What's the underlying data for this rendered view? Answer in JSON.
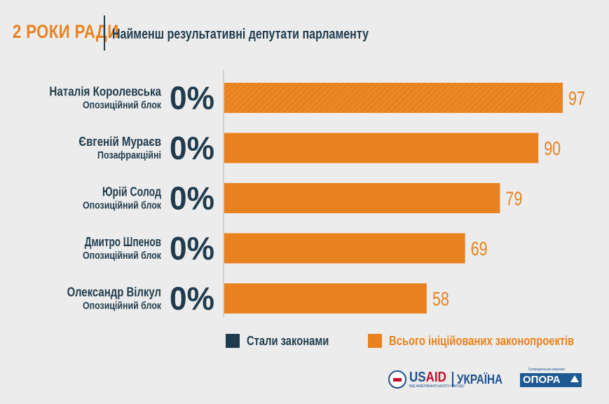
{
  "header": {
    "kicker": "2 РОКИ РАДИ",
    "title": "Найменш результативні депутати парламенту"
  },
  "chart_data": {
    "type": "bar",
    "orientation": "horizontal",
    "title": "Найменш результативні депутати парламенту",
    "categories": [
      {
        "name": "Наталія Королевська",
        "faction": "Опозиційний блок"
      },
      {
        "name": "Євгеній Мураєв",
        "faction": "Позафракційні"
      },
      {
        "name": "Юрій Солод",
        "faction": "Опозиційний блок"
      },
      {
        "name": "Дмитро Шпенов",
        "faction": "Опозиційний блок"
      },
      {
        "name": "Олександр Вілкул",
        "faction": "Опозиційний блок"
      }
    ],
    "series": [
      {
        "name": "Стали законами",
        "color": "#1f3b4d",
        "values": [
          0,
          0,
          0,
          0,
          0
        ]
      },
      {
        "name": "Всього ініційованих законопроектів",
        "color": "#e8821e",
        "values": [
          97,
          90,
          79,
          69,
          58
        ]
      }
    ],
    "percent_labels": [
      "0%",
      "0%",
      "0%",
      "0%",
      "0%"
    ],
    "value_labels": [
      "97",
      "90",
      "79",
      "69",
      "58"
    ],
    "xlim": [
      0,
      100
    ],
    "grid": false,
    "legend": "bottom"
  },
  "legend": {
    "items": [
      {
        "label": "Стали законами",
        "color": "#1f3b4d"
      },
      {
        "label": "Всього ініційованих законопроектів",
        "color": "#e8821e"
      }
    ]
  },
  "footer": {
    "usaid": {
      "usa": "US",
      "aid": "AID",
      "tagline": "ВІД АМЕРИКАНСЬКОГО НАРОДУ",
      "country": "УКРАЇНА"
    },
    "opora": {
      "name": "ОПОРА",
      "tagline": "Громадянська мережа"
    }
  },
  "colors": {
    "accent": "#e8821e",
    "dark": "#1f3b4d",
    "background": "#ececec"
  }
}
